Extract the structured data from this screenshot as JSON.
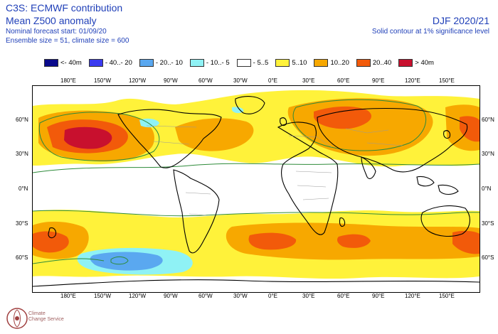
{
  "header": {
    "line1": "C3S: ECMWF contribution",
    "line2": "Mean Z500 anomaly",
    "line3": "Nominal forecast start: 01/09/20",
    "line4": "Ensemble size = 51, climate size = 600",
    "season": "DJF 2020/21",
    "note": "Solid contour at 1% significance level"
  },
  "legend": [
    {
      "label": "<- 40m",
      "color": "#0a0a8c"
    },
    {
      "label": "- 40..- 20",
      "color": "#3b3bf0"
    },
    {
      "label": "- 20..- 10",
      "color": "#5aa8f0"
    },
    {
      "label": "- 10..- 5",
      "color": "#8ff2f5"
    },
    {
      "label": "- 5..5",
      "color": "#ffffff"
    },
    {
      "label": "5..10",
      "color": "#fff23a"
    },
    {
      "label": "10..20",
      "color": "#f7a800"
    },
    {
      "label": "20..40",
      "color": "#f25a0a"
    },
    {
      "label": "> 40m",
      "color": "#c8102e"
    }
  ],
  "axes": {
    "lon_labels": [
      "180°E",
      "150°W",
      "120°W",
      "90°W",
      "60°W",
      "30°W",
      "0°E",
      "30°E",
      "60°E",
      "90°E",
      "120°E",
      "150°E"
    ],
    "lat_labels": [
      "60°N",
      "30°N",
      "0°N",
      "30°S",
      "60°S"
    ]
  },
  "logo": {
    "line1": "Climate",
    "line2": "Change Service"
  }
}
